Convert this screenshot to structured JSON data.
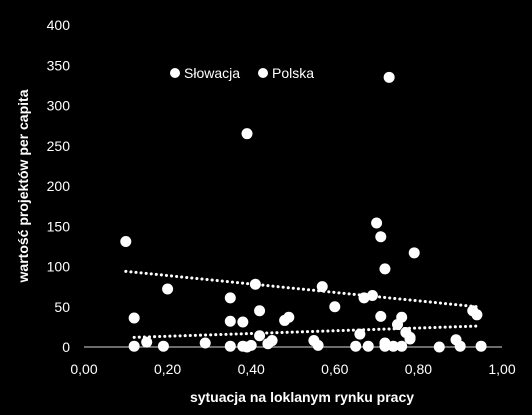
{
  "chart_data": {
    "type": "scatter",
    "xlabel": "sytuacja na loklanym rynku pracy",
    "ylabel": "wartość projektów per capita",
    "xlim": [
      0,
      1
    ],
    "ylim": [
      0,
      400
    ],
    "x_ticks": [
      "0,00",
      "0,20",
      "0,40",
      "0,60",
      "0,80",
      "1,00"
    ],
    "y_ticks": [
      "0",
      "50",
      "100",
      "150",
      "200",
      "250",
      "300",
      "350",
      "400"
    ],
    "grid": false,
    "legend_position": "top-left",
    "background": "#000000",
    "marker_color": "#ffffff",
    "series": [
      {
        "name": "Słowacja",
        "points": [
          [
            0.1,
            131
          ],
          [
            0.35,
            61
          ],
          [
            0.39,
            265
          ],
          [
            0.41,
            78
          ],
          [
            0.57,
            75
          ],
          [
            0.69,
            64
          ],
          [
            0.7,
            154
          ],
          [
            0.71,
            137
          ],
          [
            0.72,
            97
          ],
          [
            0.73,
            335
          ],
          [
            0.79,
            117
          ],
          [
            0.93,
            45
          ],
          [
            0.94,
            40
          ]
        ]
      },
      {
        "name": "Polska",
        "points": [
          [
            0.12,
            1
          ],
          [
            0.12,
            36
          ],
          [
            0.15,
            6
          ],
          [
            0.19,
            1
          ],
          [
            0.2,
            72
          ],
          [
            0.29,
            5
          ],
          [
            0.35,
            1
          ],
          [
            0.35,
            32
          ],
          [
            0.38,
            31
          ],
          [
            0.38,
            1
          ],
          [
            0.39,
            0
          ],
          [
            0.4,
            2
          ],
          [
            0.42,
            45
          ],
          [
            0.42,
            14
          ],
          [
            0.44,
            4
          ],
          [
            0.45,
            8
          ],
          [
            0.48,
            33
          ],
          [
            0.49,
            37
          ],
          [
            0.55,
            8
          ],
          [
            0.56,
            2
          ],
          [
            0.6,
            50
          ],
          [
            0.65,
            1
          ],
          [
            0.66,
            16
          ],
          [
            0.67,
            61
          ],
          [
            0.68,
            1
          ],
          [
            0.71,
            38
          ],
          [
            0.72,
            1
          ],
          [
            0.72,
            5
          ],
          [
            0.74,
            1
          ],
          [
            0.75,
            28
          ],
          [
            0.76,
            37
          ],
          [
            0.76,
            1
          ],
          [
            0.77,
            18
          ],
          [
            0.78,
            12
          ],
          [
            0.78,
            10
          ],
          [
            0.85,
            0
          ],
          [
            0.89,
            9
          ],
          [
            0.9,
            1
          ],
          [
            0.95,
            1
          ]
        ]
      }
    ],
    "trendlines": [
      {
        "series": "Słowacja",
        "style": "dotted",
        "from": [
          0.1,
          94
        ],
        "to": [
          0.94,
          50
        ]
      },
      {
        "series": "Polska",
        "style": "dotted",
        "from": [
          0.12,
          12
        ],
        "to": [
          0.94,
          26
        ]
      }
    ]
  }
}
